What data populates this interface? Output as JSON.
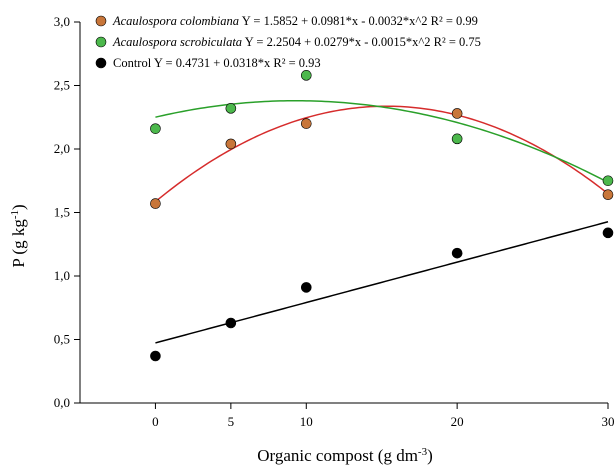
{
  "chart_data": {
    "type": "scatter",
    "xlabel": "Organic compost (g dm",
    "xlabel_sup": "-3",
    "xlabel_end": ")",
    "ylabel": "P (g kg",
    "ylabel_sup": "-1",
    "ylabel_end": ")",
    "xlim": [
      -5,
      30
    ],
    "ylim": [
      0,
      3.0
    ],
    "x_ticks": [
      0,
      5,
      10,
      20,
      30
    ],
    "x_tick_labels": [
      "0",
      "5",
      "10",
      "20",
      "30"
    ],
    "y_ticks": [
      0,
      0.5,
      1.0,
      1.5,
      2.0,
      2.5,
      3.0
    ],
    "y_tick_labels": [
      "0,0",
      "0,5",
      "1,0",
      "1,5",
      "2,0",
      "2,5",
      "3,0"
    ],
    "grid": false,
    "legend_position": "top-left",
    "series": [
      {
        "name": "Acaulospora colombiana",
        "equation": "Y =  1.5852 + 0.0981*x - 0.0032*x^2 R² = 0.99",
        "marker_color": "#c8763a",
        "line_color": "#d62c2c",
        "fit": {
          "a": 1.5852,
          "b": 0.0981,
          "c": -0.0032
        },
        "x": [
          0,
          5,
          10,
          20,
          30
        ],
        "y": [
          1.57,
          2.04,
          2.2,
          2.28,
          1.64
        ]
      },
      {
        "name": "Acaulospora scrobiculata",
        "equation": "Y =  2.2504 + 0.0279*x - 0.0015*x^2 R² = 0.75",
        "marker_color": "#4cb84c",
        "line_color": "#2aa02a",
        "fit": {
          "a": 2.2504,
          "b": 0.0279,
          "c": -0.0015
        },
        "x": [
          0,
          5,
          10,
          20,
          30
        ],
        "y": [
          2.16,
          2.32,
          2.58,
          2.08,
          1.75
        ]
      },
      {
        "name": "Control",
        "equation": "Y = 0.4731 + 0.0318*x R² = 0.93",
        "marker_color": "#000000",
        "line_color": "#000000",
        "fit": {
          "a": 0.4731,
          "b": 0.0318,
          "c": 0
        },
        "x": [
          0,
          5,
          10,
          20,
          30
        ],
        "y": [
          0.37,
          0.63,
          0.91,
          1.18,
          1.34
        ]
      }
    ]
  }
}
